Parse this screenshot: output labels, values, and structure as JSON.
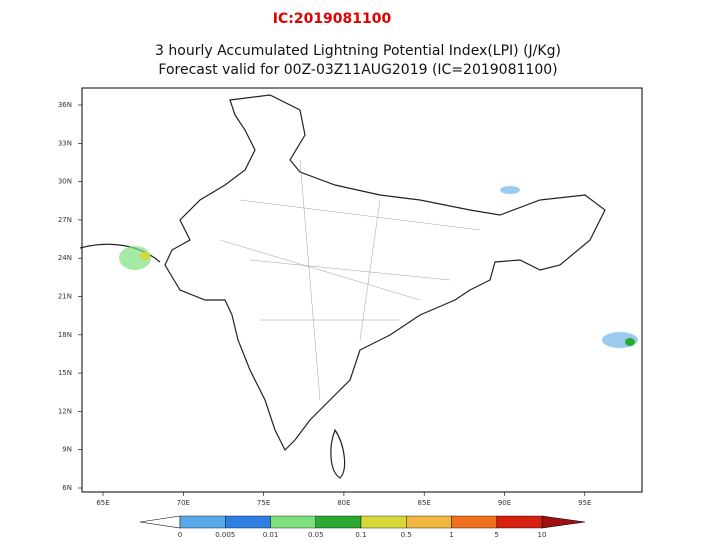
{
  "header": {
    "ic_label": "IC:2019081100"
  },
  "map": {
    "title_lines": [
      "3 hourly Accumulated Lightning Potential Index(LPI) (J/Kg)",
      "Forecast valid for 00Z-03Z11AUG2019 (IC=2019081100)"
    ],
    "lat_labels": [
      "36N",
      "33N",
      "30N",
      "27N",
      "24N",
      "21N",
      "18N",
      "15N",
      "12N",
      "9N",
      "6N"
    ],
    "lon_labels": [
      "65E",
      "70E",
      "75E",
      "80E",
      "85E",
      "90E",
      "95E"
    ]
  },
  "colorbar": {
    "labels": [
      "0",
      "0.005",
      "0.01",
      "0.05",
      "0.1",
      "0.5",
      "1",
      "5",
      "10"
    ],
    "colors": [
      "#5aa8e8",
      "#2f7fe0",
      "#7de07d",
      "#2aa830",
      "#d8d83a",
      "#f0b840",
      "#f07020",
      "#d82010"
    ]
  }
}
